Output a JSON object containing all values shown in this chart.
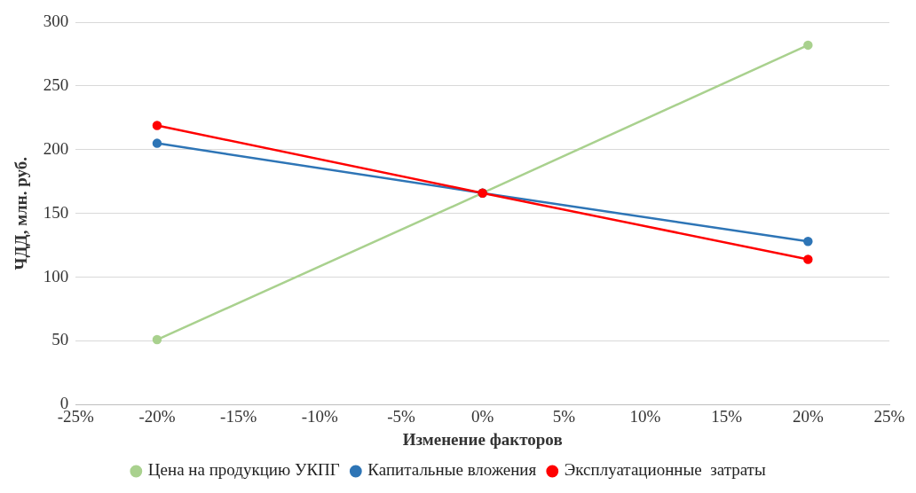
{
  "chart_data": {
    "type": "line",
    "xlabel": "Изменение факторов",
    "ylabel": "ЧДД, млн. руб.",
    "x": [
      -20,
      0,
      20
    ],
    "series": [
      {
        "name": "Цена на продукцию УКПГ",
        "color": "#a9d18e",
        "values": [
          51,
          166,
          282
        ]
      },
      {
        "name": "Капитальные вложения",
        "color": "#2e75b6",
        "values": [
          205,
          166,
          128
        ]
      },
      {
        "name": "Эксплуатационные  затраты",
        "color": "#ff0000",
        "values": [
          219,
          166,
          114
        ]
      }
    ],
    "xlim": [
      -25,
      25
    ],
    "xticks": [
      {
        "value": -25,
        "label": "-25%"
      },
      {
        "value": -20,
        "label": "-20%"
      },
      {
        "value": -15,
        "label": "-15%"
      },
      {
        "value": -10,
        "label": "-10%"
      },
      {
        "value": -5,
        "label": "-5%"
      },
      {
        "value": 0,
        "label": "0%"
      },
      {
        "value": 5,
        "label": "5%"
      },
      {
        "value": 10,
        "label": "10%"
      },
      {
        "value": 15,
        "label": "15%"
      },
      {
        "value": 20,
        "label": "20%"
      },
      {
        "value": 25,
        "label": "25%"
      }
    ],
    "ylim": [
      0,
      300
    ],
    "yticks": [
      0,
      50,
      100,
      150,
      200,
      250,
      300
    ],
    "grid": "y",
    "legend": "bottom",
    "marker": "circle",
    "line_style": "solid"
  }
}
